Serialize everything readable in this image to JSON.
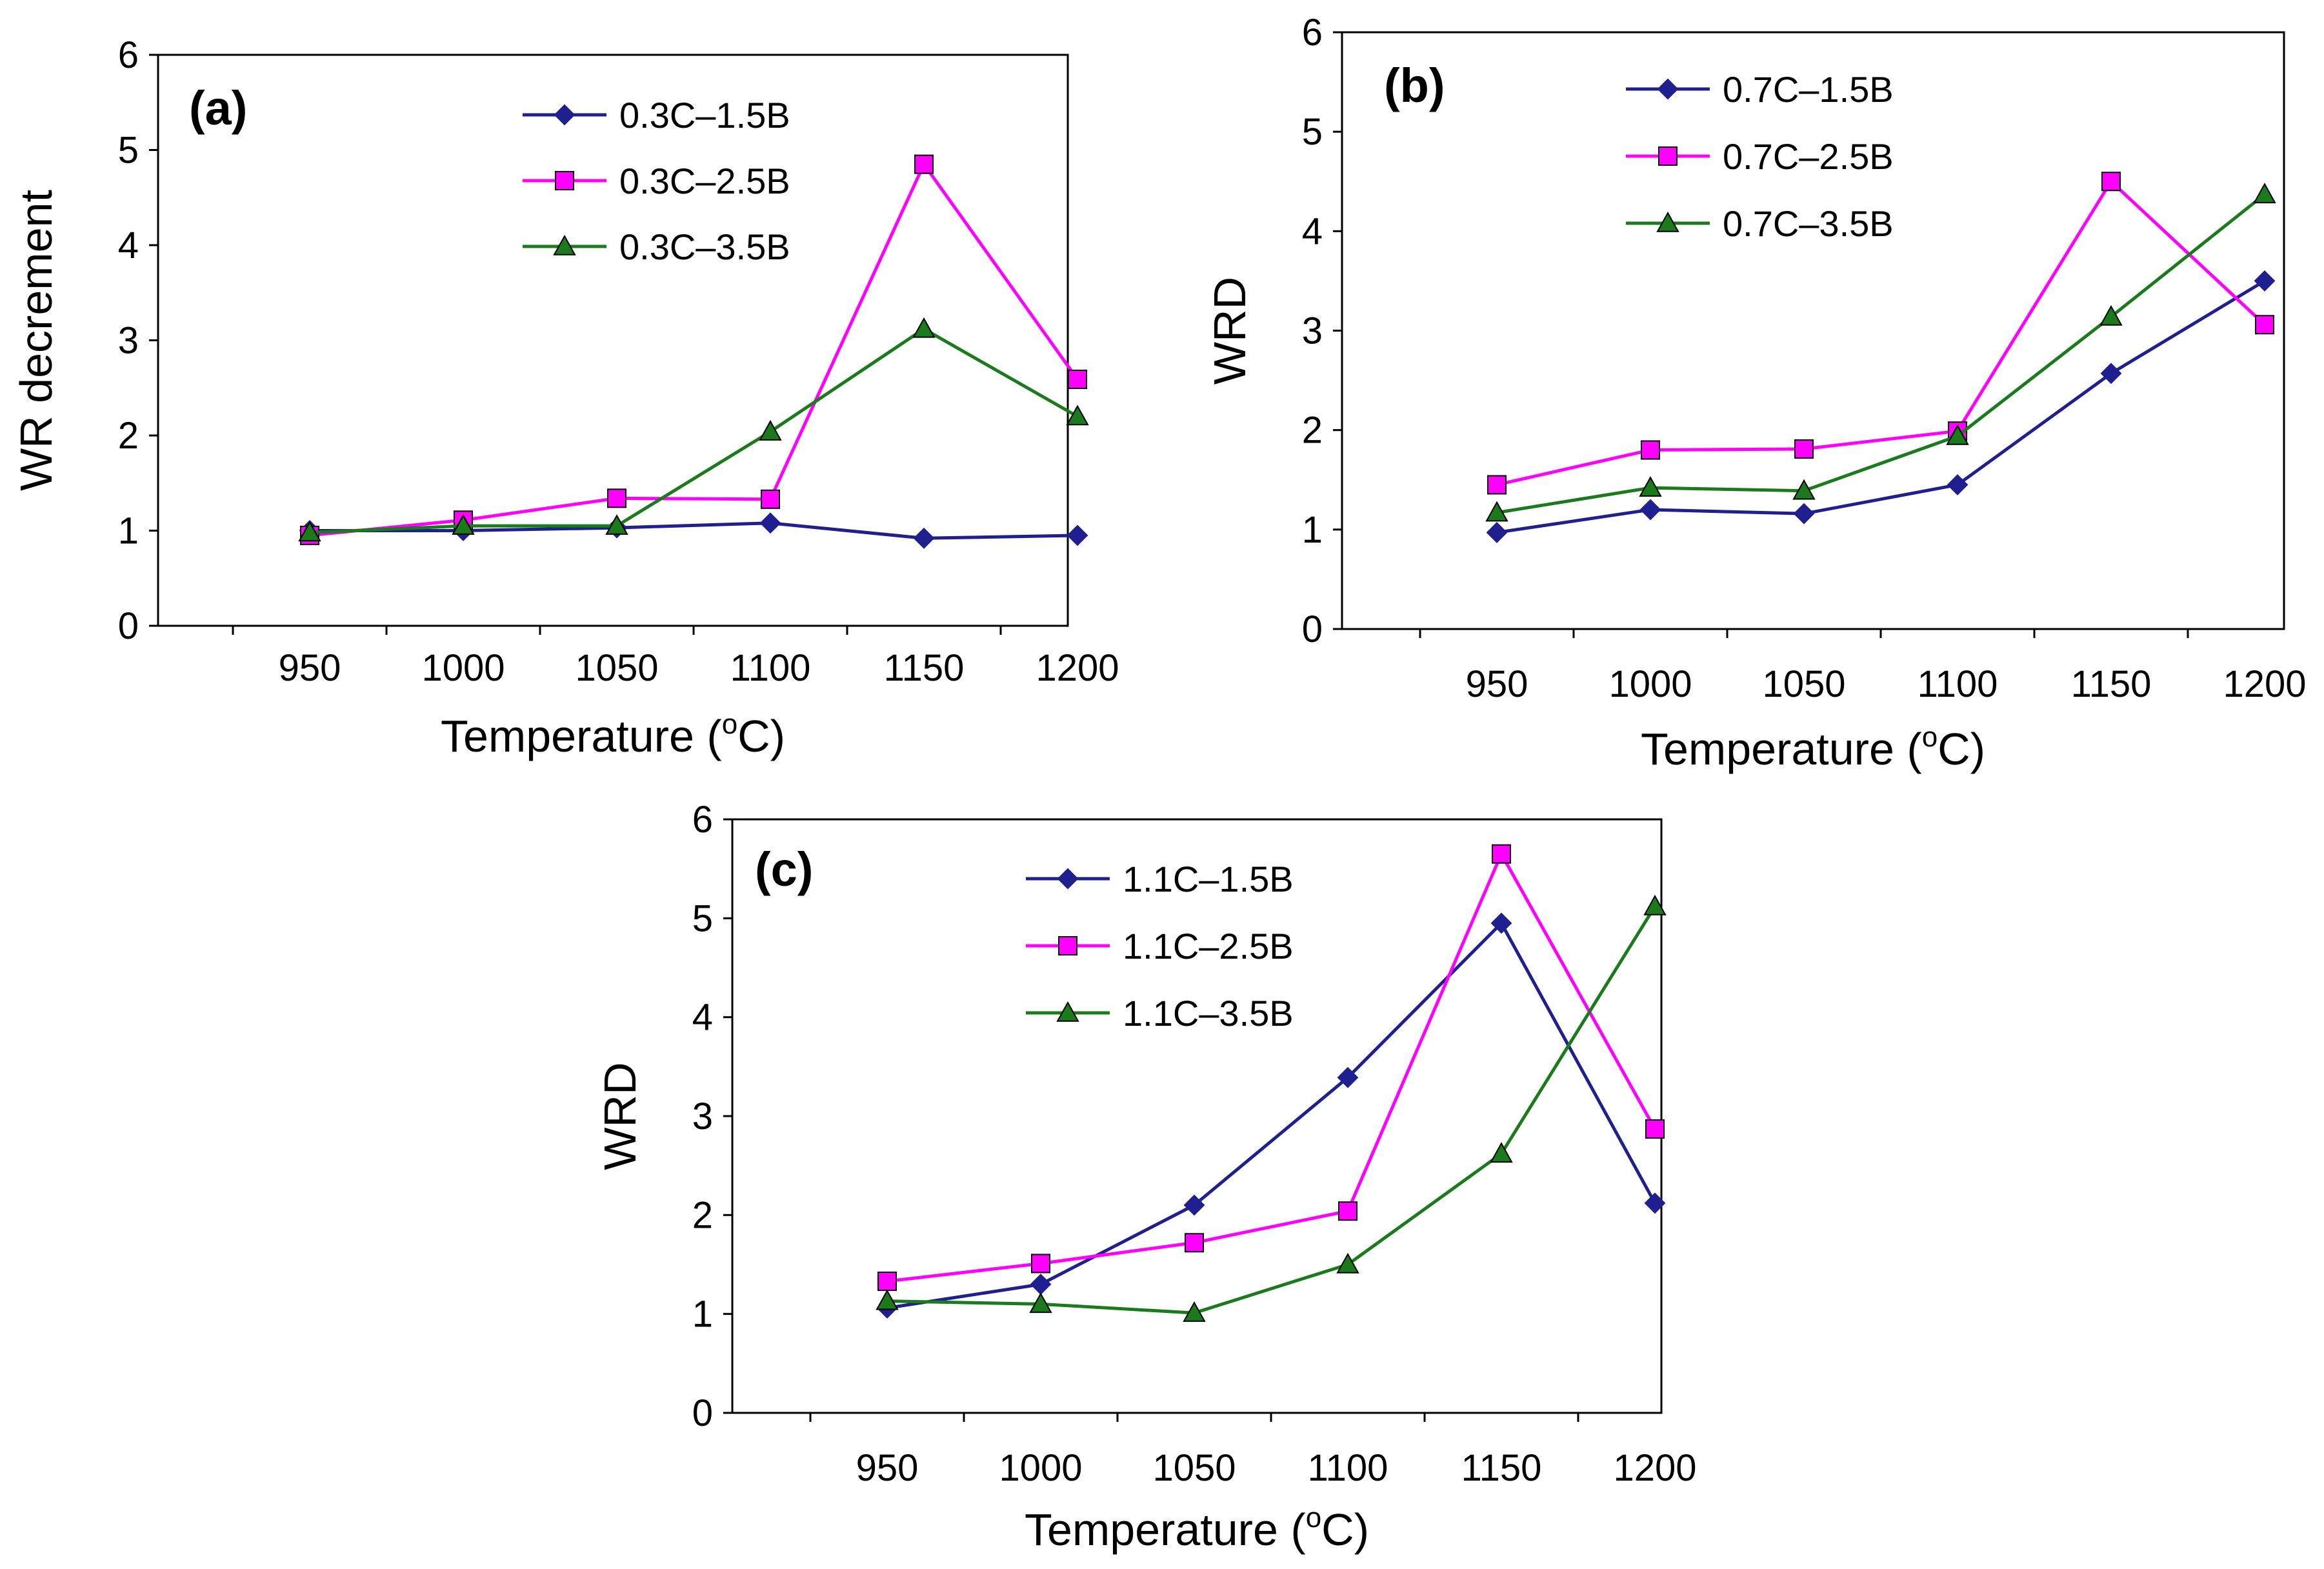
{
  "chart_data": [
    {
      "type": "line",
      "panel_label": "(a)",
      "title": "",
      "xlabel": "Temperature (",
      "xlabel_sup": "o",
      "xlabel_unit": "C)",
      "ylabel": "WR decrement",
      "x": [
        950,
        1000,
        1050,
        1100,
        1150,
        1200
      ],
      "x_ticks": [
        "950",
        "1000",
        "1050",
        "1100",
        "1150",
        "1200"
      ],
      "y_ticks": [
        "0",
        "1",
        "2",
        "3",
        "4",
        "5",
        "6"
      ],
      "ylim": [
        0,
        6
      ],
      "grid": false,
      "legend_position": "top-center",
      "series": [
        {
          "name": "0.3C–1.5B",
          "marker": "diamond",
          "color": "#1f1f8f",
          "values": [
            1.0,
            1.0,
            1.03,
            1.08,
            0.92,
            0.95
          ]
        },
        {
          "name": "0.3C–2.5B",
          "marker": "square",
          "color": "#ff00ff",
          "values": [
            0.95,
            1.11,
            1.34,
            1.33,
            4.85,
            2.59
          ]
        },
        {
          "name": "0.3C–3.5B",
          "marker": "triangle",
          "color": "#1b7a1b",
          "values": [
            0.98,
            1.05,
            1.05,
            2.04,
            3.12,
            2.2
          ]
        }
      ]
    },
    {
      "type": "line",
      "panel_label": "(b)",
      "title": "",
      "xlabel": "Temperature (",
      "xlabel_sup": "o",
      "xlabel_unit": "C)",
      "ylabel": "WRD",
      "x": [
        950,
        1000,
        1050,
        1100,
        1150,
        1200
      ],
      "x_ticks": [
        "950",
        "1000",
        "1050",
        "1100",
        "1150",
        "1200"
      ],
      "y_ticks": [
        "0",
        "1",
        "2",
        "3",
        "4",
        "5",
        "6"
      ],
      "ylim": [
        0,
        6
      ],
      "grid": false,
      "legend_position": "top-center",
      "series": [
        {
          "name": "0.7C–1.5B",
          "marker": "diamond",
          "color": "#1f1f8f",
          "values": [
            0.97,
            1.2,
            1.16,
            1.45,
            2.57,
            3.5
          ]
        },
        {
          "name": "0.7C–2.5B",
          "marker": "square",
          "color": "#ff00ff",
          "values": [
            1.45,
            1.8,
            1.81,
            1.99,
            4.5,
            3.06
          ]
        },
        {
          "name": "0.7C–3.5B",
          "marker": "triangle",
          "color": "#1b7a1b",
          "values": [
            1.17,
            1.42,
            1.39,
            1.94,
            3.14,
            4.37
          ]
        }
      ]
    },
    {
      "type": "line",
      "panel_label": "(c)",
      "title": "",
      "xlabel": "Temperature (",
      "xlabel_sup": "o",
      "xlabel_unit": "C)",
      "ylabel": "WRD",
      "x": [
        950,
        1000,
        1050,
        1100,
        1150,
        1200
      ],
      "x_ticks": [
        "950",
        "1000",
        "1050",
        "1100",
        "1150",
        "1200"
      ],
      "y_ticks": [
        "0",
        "1",
        "2",
        "3",
        "4",
        "5",
        "6"
      ],
      "ylim": [
        0,
        6
      ],
      "grid": false,
      "legend_position": "top-center",
      "series": [
        {
          "name": "1.1C–1.5B",
          "marker": "diamond",
          "color": "#1f1f8f",
          "values": [
            1.06,
            1.3,
            2.1,
            3.39,
            4.95,
            2.12
          ]
        },
        {
          "name": "1.1C–2.5B",
          "marker": "square",
          "color": "#ff00ff",
          "values": [
            1.33,
            1.51,
            1.72,
            2.04,
            5.65,
            2.87
          ]
        },
        {
          "name": "1.1C–3.5B",
          "marker": "triangle",
          "color": "#1b7a1b",
          "values": [
            1.13,
            1.1,
            1.01,
            1.5,
            2.62,
            5.12
          ]
        }
      ]
    }
  ]
}
